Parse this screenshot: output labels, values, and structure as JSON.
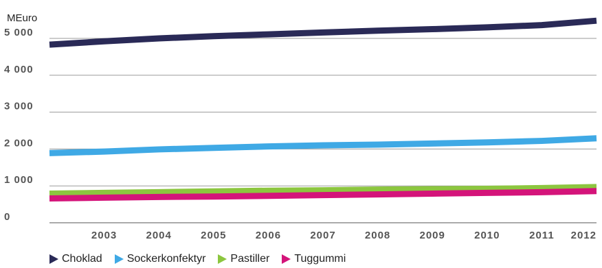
{
  "chart_data": {
    "type": "line",
    "unit_label": "MEuro",
    "x": [
      "2002",
      "2003",
      "2004",
      "2005",
      "2006",
      "2007",
      "2008",
      "2009",
      "2010",
      "2011",
      "2012"
    ],
    "x_tick_labels": [
      "2003",
      "2004",
      "2005",
      "2006",
      "2007",
      "2008",
      "2009",
      "2010",
      "2011",
      "2012"
    ],
    "y_ticks": [
      0,
      1000,
      2000,
      3000,
      4000,
      5000
    ],
    "y_tick_labels": [
      "0",
      "1 000",
      "2 000",
      "3 000",
      "4 000",
      "5 000"
    ],
    "ylim": [
      0,
      5500
    ],
    "grid": true,
    "legend_position": "bottom-left",
    "series": [
      {
        "name": "Choklad",
        "color": "#2a2a57",
        "values": [
          4830,
          4920,
          5000,
          5060,
          5110,
          5160,
          5210,
          5250,
          5300,
          5360,
          5480
        ]
      },
      {
        "name": "Sockerkonfektyr",
        "color": "#3fa9e5",
        "values": [
          1890,
          1930,
          1990,
          2030,
          2070,
          2100,
          2120,
          2150,
          2180,
          2220,
          2290
        ]
      },
      {
        "name": "Pastiller",
        "color": "#8cc63f",
        "values": [
          790,
          810,
          830,
          850,
          870,
          880,
          900,
          910,
          920,
          940,
          970
        ]
      },
      {
        "name": "Tuggummi",
        "color": "#d4147a",
        "values": [
          660,
          680,
          700,
          710,
          730,
          750,
          770,
          790,
          810,
          830,
          860
        ]
      }
    ]
  }
}
